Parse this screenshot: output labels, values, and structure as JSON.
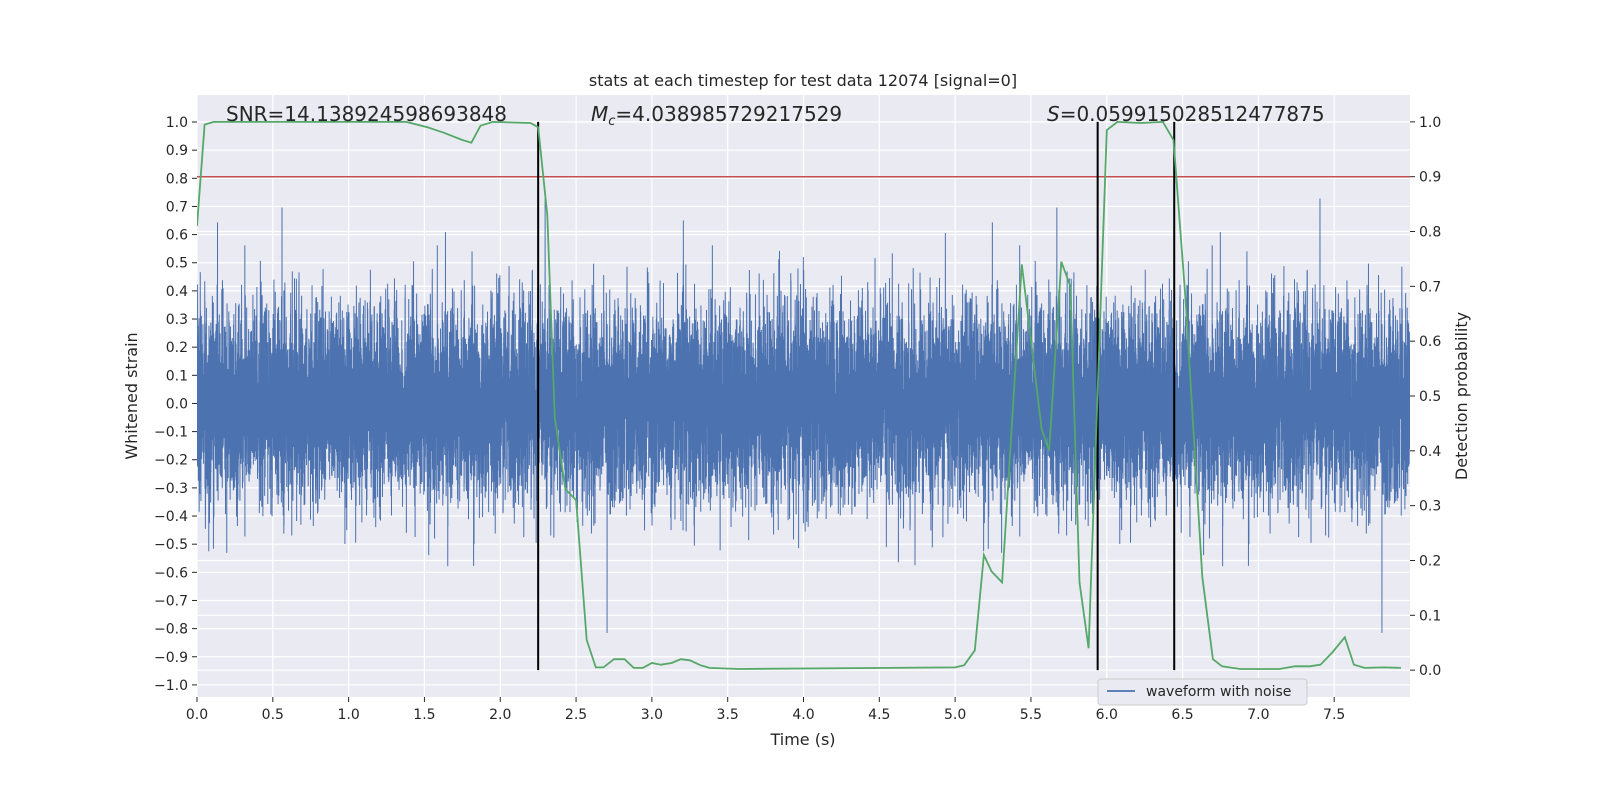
{
  "chart_data": {
    "type": "line",
    "title": "stats at each timestep for test data 12074 [signal=0]",
    "xlabel": "Time (s)",
    "ylabel": "Whitened strain",
    "ylabel_right": "Detection probability",
    "xlim": [
      0,
      8.0
    ],
    "ylim": [
      -1.043,
      1.096
    ],
    "ylim_right": [
      -0.049,
      1.049
    ],
    "grid": true,
    "xticks": [
      "0.0",
      "0.5",
      "1.0",
      "1.5",
      "2.0",
      "2.5",
      "3.0",
      "3.5",
      "4.0",
      "4.5",
      "5.0",
      "5.5",
      "6.0",
      "6.5",
      "7.0",
      "7.5"
    ],
    "yticks": [
      "1.0",
      "0.9",
      "0.8",
      "0.7",
      "0.6",
      "0.5",
      "0.4",
      "0.3",
      "0.2",
      "0.1",
      "0.0",
      "−0.1",
      "−0.2",
      "−0.3",
      "−0.4",
      "−0.5",
      "−0.6",
      "−0.7",
      "−0.8",
      "−0.9",
      "−1.0"
    ],
    "yticks_right": [
      "0.0",
      "0.1",
      "0.2",
      "0.3",
      "0.4",
      "0.5",
      "0.6",
      "0.7",
      "0.8",
      "0.9",
      "1.0"
    ],
    "annotations": {
      "snr": "SNR=14.138924598693848",
      "mc_symbol": "M",
      "mc_sub": "c",
      "mc_value": "=4.038985729217529",
      "s_symbol": "S",
      "s_value": "=0.059915028512477875"
    },
    "legend": {
      "placement": "lower-right",
      "entries": [
        "waveform with noise"
      ]
    },
    "colors": {
      "waveform": "#4c72b0",
      "probability": "#55a868",
      "threshold": "#c44e52",
      "marker": "#000000",
      "plot_bg": "#eaeaf2"
    },
    "threshold_probability": 0.9,
    "vertical_markers_time": [
      2.25,
      5.94,
      6.445
    ],
    "waveform": {
      "name": "waveform with noise",
      "axis": "left",
      "sample_rate": 2048,
      "duration": 8.0,
      "noise_std": 0.17,
      "min": -0.95,
      "max": 1.0
    },
    "probability": {
      "axis": "right",
      "t": [
        0,
        0.05,
        0.11,
        1.38,
        1.52,
        1.63,
        1.75,
        1.81,
        1.87,
        1.95,
        2.2,
        2.25,
        2.31,
        2.36,
        2.43,
        2.5,
        2.57,
        2.63,
        2.68,
        2.75,
        2.82,
        2.88,
        2.94,
        3.0,
        3.06,
        3.13,
        3.19,
        3.25,
        3.32,
        3.38,
        3.57,
        5.0,
        5.06,
        5.13,
        5.19,
        5.24,
        5.31,
        5.44,
        5.57,
        5.62,
        5.7,
        5.76,
        5.82,
        5.88,
        6.0,
        6.07,
        6.22,
        6.37,
        6.44,
        6.52,
        6.63,
        6.7,
        6.76,
        6.88,
        7.14,
        7.24,
        7.34,
        7.41,
        7.49,
        7.57,
        7.63,
        7.7,
        7.83,
        7.94
      ],
      "p": [
        0.81,
        0.995,
        1.0,
        1.0,
        0.99,
        0.98,
        0.967,
        0.962,
        0.993,
        1.0,
        0.998,
        0.99,
        0.83,
        0.46,
        0.33,
        0.31,
        0.055,
        0.005,
        0.005,
        0.02,
        0.02,
        0.004,
        0.004,
        0.013,
        0.01,
        0.013,
        0.02,
        0.018,
        0.009,
        0.004,
        0.002,
        0.005,
        0.009,
        0.036,
        0.21,
        0.18,
        0.16,
        0.74,
        0.44,
        0.4,
        0.745,
        0.7,
        0.16,
        0.04,
        0.985,
        1.0,
        0.998,
        1.0,
        0.967,
        0.675,
        0.17,
        0.02,
        0.007,
        0.002,
        0.002,
        0.007,
        0.007,
        0.01,
        0.033,
        0.06,
        0.01,
        0.004,
        0.005,
        0.004
      ]
    }
  }
}
